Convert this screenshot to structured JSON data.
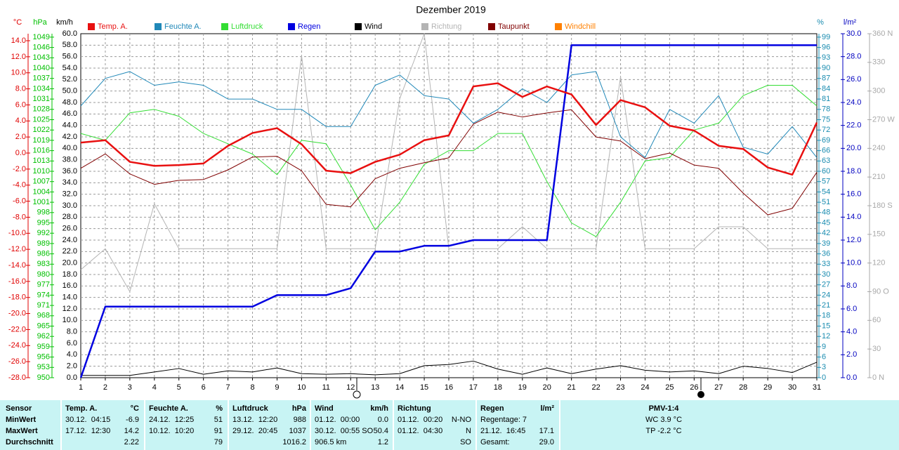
{
  "chart_data": {
    "type": "line",
    "title": "Dezember 2019",
    "x": [
      1,
      2,
      3,
      4,
      5,
      6,
      7,
      8,
      9,
      10,
      11,
      12,
      13,
      14,
      15,
      16,
      17,
      18,
      19,
      20,
      21,
      22,
      23,
      24,
      25,
      26,
      27,
      28,
      29,
      30,
      31
    ],
    "xlim": [
      1,
      31
    ],
    "grid": true,
    "axes": [
      {
        "name": "°C",
        "color": "#e00000",
        "lim": [
          -28,
          14.875
        ],
        "ticks": [
          {
            "value": 14,
            "label": "14.0"
          },
          {
            "value": 12,
            "label": "12.0"
          },
          {
            "value": 10,
            "label": "10.0"
          },
          {
            "value": 8,
            "label": "8.0"
          },
          {
            "value": 6,
            "label": "6.0"
          },
          {
            "value": 4,
            "label": "4.0"
          },
          {
            "value": 2,
            "label": "2.0"
          },
          {
            "value": 0,
            "label": "0.0"
          },
          {
            "value": -2,
            "label": "-2.0"
          },
          {
            "value": -4,
            "label": "-4.0"
          },
          {
            "value": -6,
            "label": "-6.0"
          },
          {
            "value": -8,
            "label": "-8.0"
          },
          {
            "value": -10,
            "label": "-10.0"
          },
          {
            "value": -12,
            "label": "-12.0"
          },
          {
            "value": -14,
            "label": "-14.0"
          },
          {
            "value": -16,
            "label": "-16.0"
          },
          {
            "value": -18,
            "label": "-18.0"
          },
          {
            "value": -20,
            "label": "-20.0"
          },
          {
            "value": -22,
            "label": "-22.0"
          },
          {
            "value": -24,
            "label": "-24.0"
          },
          {
            "value": -26,
            "label": "-26.0"
          },
          {
            "value": -28,
            "label": "-28.0"
          }
        ]
      },
      {
        "name": "hPa",
        "color": "#00c000",
        "lim": [
          950,
          1050
        ],
        "ticks": [
          1049,
          1046,
          1043,
          1040,
          1037,
          1034,
          1031,
          1028,
          1025,
          1022,
          1019,
          1016,
          1013,
          1010,
          1007,
          1004,
          1001,
          998,
          995,
          992,
          989,
          986,
          983,
          980,
          977,
          974,
          971,
          968,
          965,
          962,
          959,
          956,
          953,
          950
        ]
      },
      {
        "name": "km/h",
        "color": "#000000",
        "grid": true,
        "lim": [
          0,
          60
        ],
        "ticks": [
          {
            "value": 60,
            "label": "60.0"
          },
          {
            "value": 58,
            "label": "58.0"
          },
          {
            "value": 56,
            "label": "56.0"
          },
          {
            "value": 54,
            "label": "54.0"
          },
          {
            "value": 52,
            "label": "52.0"
          },
          {
            "value": 50,
            "label": "50.0"
          },
          {
            "value": 48,
            "label": "48.0"
          },
          {
            "value": 46,
            "label": "46.0"
          },
          {
            "value": 44,
            "label": "44.0"
          },
          {
            "value": 42,
            "label": "42.0"
          },
          {
            "value": 40,
            "label": "40.0"
          },
          {
            "value": 38,
            "label": "38.0"
          },
          {
            "value": 36,
            "label": "36.0"
          },
          {
            "value": 34,
            "label": "34.0"
          },
          {
            "value": 32,
            "label": "32.0"
          },
          {
            "value": 30,
            "label": "30.0"
          },
          {
            "value": 28,
            "label": "28.0"
          },
          {
            "value": 26,
            "label": "26.0"
          },
          {
            "value": 24,
            "label": "24.0"
          },
          {
            "value": 22,
            "label": "22.0"
          },
          {
            "value": 20,
            "label": "20.0"
          },
          {
            "value": 18,
            "label": "18.0"
          },
          {
            "value": 16,
            "label": "16.0"
          },
          {
            "value": 14,
            "label": "14.0"
          },
          {
            "value": 12,
            "label": "12.0"
          },
          {
            "value": 10,
            "label": "10.0"
          },
          {
            "value": 8,
            "label": "8.0"
          },
          {
            "value": 6,
            "label": "6.0"
          },
          {
            "value": 4,
            "label": "4.0"
          },
          {
            "value": 2,
            "label": "2.0"
          },
          {
            "value": 0,
            "label": "0.0"
          }
        ]
      },
      {
        "name": "%",
        "color": "#1a8cb0",
        "lim": [
          0,
          100
        ],
        "ticks": [
          99,
          96,
          93,
          90,
          87,
          84,
          81,
          78,
          75,
          72,
          69,
          66,
          63,
          60,
          57,
          54,
          51,
          48,
          45,
          42,
          39,
          36,
          33,
          30,
          27,
          24,
          21,
          18,
          15,
          12,
          9,
          6,
          3,
          0
        ]
      },
      {
        "name": "l/m²",
        "color": "#0000c0",
        "lim": [
          0,
          30
        ],
        "ticks": [
          {
            "value": 30,
            "label": "30.0"
          },
          {
            "value": 28,
            "label": "28.0"
          },
          {
            "value": 26,
            "label": "26.0"
          },
          {
            "value": 24,
            "label": "24.0"
          },
          {
            "value": 22,
            "label": "22.0"
          },
          {
            "value": 20,
            "label": "20.0"
          },
          {
            "value": 18,
            "label": "18.0"
          },
          {
            "value": 16,
            "label": "16.0"
          },
          {
            "value": 14,
            "label": "14.0"
          },
          {
            "value": 12,
            "label": "12.0"
          },
          {
            "value": 10,
            "label": "10.0"
          },
          {
            "value": 8,
            "label": "8.0"
          },
          {
            "value": 6,
            "label": "6.0"
          },
          {
            "value": 4,
            "label": "4.0"
          },
          {
            "value": 2,
            "label": "2.0"
          },
          {
            "value": 0,
            "label": "0.0"
          }
        ]
      },
      {
        "color": "#a8a8a8",
        "lim": [
          0,
          360
        ],
        "ticks": [
          {
            "value": 360,
            "label": "360 N"
          },
          {
            "value": 330,
            "label": "330"
          },
          {
            "value": 300,
            "label": "300"
          },
          {
            "value": 270,
            "label": "270 W"
          },
          {
            "value": 240,
            "label": "240"
          },
          {
            "value": 210,
            "label": "210"
          },
          {
            "value": 180,
            "label": "180 S"
          },
          {
            "value": 150,
            "label": "150"
          },
          {
            "value": 120,
            "label": "120"
          },
          {
            "value": 90,
            "label": "90 O"
          },
          {
            "value": 60,
            "label": "60"
          },
          {
            "value": 30,
            "label": "30"
          },
          {
            "value": 0,
            "label": "0 N"
          }
        ]
      }
    ],
    "series": [
      {
        "name": "Temp. A.",
        "color": "#e81010",
        "axis": 0,
        "width": 2.5,
        "values": [
          1.3,
          1.6,
          -1.1,
          -1.6,
          -1.5,
          -1.3,
          0.9,
          2.5,
          3.1,
          1.1,
          -2.2,
          -2.5,
          -1.1,
          -0.2,
          1.6,
          2.2,
          8.3,
          8.7,
          7.0,
          8.3,
          7.3,
          3.5,
          6.6,
          5.7,
          3.4,
          2.8,
          0.9,
          0.5,
          -1.8,
          -2.7,
          3.8
        ]
      },
      {
        "name": "Feuchte A.",
        "color": "#2088b8",
        "axis": 3,
        "width": 1,
        "values": [
          79,
          87,
          89,
          85,
          86,
          85,
          81,
          81,
          78,
          78,
          73,
          73,
          85,
          88,
          82,
          81,
          74,
          78,
          84,
          80,
          88,
          89,
          70,
          64,
          78,
          74,
          82,
          67,
          65,
          73,
          64
        ]
      },
      {
        "name": "Luftdruck",
        "color": "#33dd33",
        "axis": 1,
        "width": 1,
        "values": [
          1021,
          1019,
          1027,
          1028,
          1026,
          1021,
          1018,
          1015,
          1009,
          1019,
          1018,
          1006,
          993,
          1001,
          1012,
          1016,
          1016,
          1021,
          1021,
          1007,
          995,
          991,
          1001,
          1013,
          1014,
          1022,
          1024,
          1032,
          1035,
          1035,
          1029
        ]
      },
      {
        "name": "Regen",
        "color": "#0000e0",
        "axis": 4,
        "width": 2.5,
        "values": [
          0,
          6.2,
          6.2,
          6.2,
          6.2,
          6.2,
          6.2,
          6.2,
          7.2,
          7.2,
          7.2,
          7.8,
          11.0,
          11.0,
          11.5,
          11.5,
          12.0,
          12.0,
          12.0,
          12.0,
          29.0,
          29.0,
          29.0,
          29.0,
          29.0,
          29.0,
          29.0,
          29.0,
          29.0,
          29.0,
          29.0
        ]
      },
      {
        "name": "Wind",
        "color": "#000000",
        "axis": 2,
        "width": 1,
        "values": [
          0.4,
          0.4,
          0.4,
          1.0,
          1.6,
          0.6,
          1.2,
          1.0,
          1.7,
          0.7,
          0.6,
          0.7,
          0.5,
          0.7,
          2.1,
          2.3,
          2.9,
          1.5,
          0.6,
          1.7,
          0.7,
          1.5,
          2.1,
          1.3,
          1.0,
          1.2,
          0.7,
          2.0,
          1.6,
          0.9,
          2.7
        ]
      },
      {
        "name": "Richtung",
        "color": "#b4b4b4",
        "axis": 5,
        "width": 1,
        "values": [
          113,
          135,
          90,
          182,
          135,
          135,
          135,
          135,
          135,
          337,
          135,
          135,
          135,
          292,
          360,
          135,
          135,
          135,
          158,
          135,
          135,
          135,
          315,
          135,
          135,
          135,
          158,
          158,
          135,
          135,
          135
        ]
      },
      {
        "name": "Taupunkt",
        "color": "#800000",
        "axis": 0,
        "width": 1,
        "values": [
          -1.9,
          -0.1,
          -2.6,
          -3.9,
          -3.4,
          -3.3,
          -2.1,
          -0.5,
          -0.4,
          -2.2,
          -6.4,
          -6.7,
          -3.2,
          -1.9,
          -1.2,
          -0.6,
          3.6,
          5.1,
          4.5,
          5.0,
          5.4,
          2.0,
          1.5,
          -0.7,
          0.0,
          -1.5,
          -1.9,
          -5.0,
          -7.7,
          -6.9,
          -2.4
        ]
      },
      {
        "name": "Windchill",
        "color": "#ff8000",
        "axis": 0,
        "width": 1,
        "values": [
          null,
          null,
          null,
          null,
          null,
          null,
          null,
          null,
          null,
          null,
          null,
          null,
          null,
          null,
          null,
          null,
          null,
          null,
          null,
          null,
          null,
          null,
          null,
          null,
          null,
          null,
          null,
          null,
          null,
          null,
          null
        ]
      }
    ]
  },
  "stats": {
    "row_labels": [
      "Sensor",
      "MinWert",
      "MaxWert",
      "Durchschnitt"
    ],
    "columns": [
      {
        "title": "Temp. A.",
        "unit": "°C",
        "min": {
          "when": "30.12.  04:15",
          "value": "-6.9"
        },
        "max": {
          "when": "17.12.  12:30",
          "value": "14.2"
        },
        "avg": {
          "value": "2.22"
        }
      },
      {
        "title": "Feuchte A.",
        "unit": "%",
        "min": {
          "when": "24.12.  12:25",
          "value": "51"
        },
        "max": {
          "when": "10.12.  10:20",
          "value": "91"
        },
        "avg": {
          "value": "79"
        }
      },
      {
        "title": "Luftdruck",
        "unit": "hPa",
        "min": {
          "when": "13.12.  12:20",
          "value": "988"
        },
        "max": {
          "when": "29.12.  20:45",
          "value": "1037"
        },
        "avg": {
          "value": "1016.2"
        }
      },
      {
        "title": "Wind",
        "unit": "km/h",
        "min": {
          "when": "01.12.  00:00",
          "value": "0.0"
        },
        "max": {
          "when": "30.12.  00:55 SO",
          "value": "50.4"
        },
        "avg": {
          "when": "906.5 km",
          "value": "1.2"
        }
      },
      {
        "title": "Richtung",
        "min": {
          "when": "01.12.  00:20",
          "value": "N-NO"
        },
        "max": {
          "when": "01.12.  04:30",
          "value": "N"
        },
        "avg": {
          "value": "SO"
        }
      },
      {
        "title": "Regen",
        "unit": "l/m²",
        "min": {
          "when": "Regentage: 7"
        },
        "max": {
          "when": "21.12.  16:45",
          "value": "17.1"
        },
        "avg": {
          "when": "Gesamt:",
          "value": "29.0"
        }
      }
    ],
    "pmv": {
      "title": "PMV-1:4",
      "lines": [
        "WC 3.9 °C",
        "TP -2.2 °C"
      ]
    }
  }
}
